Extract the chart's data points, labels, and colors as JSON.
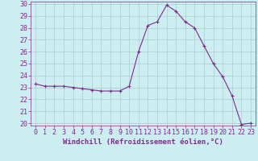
{
  "x": [
    0,
    1,
    2,
    3,
    4,
    5,
    6,
    7,
    8,
    9,
    10,
    11,
    12,
    13,
    14,
    15,
    16,
    17,
    18,
    19,
    20,
    21,
    22,
    23
  ],
  "y": [
    23.3,
    23.1,
    23.1,
    23.1,
    23.0,
    22.9,
    22.8,
    22.7,
    22.7,
    22.7,
    23.1,
    26.0,
    28.2,
    28.5,
    29.9,
    29.4,
    28.5,
    28.0,
    26.5,
    25.0,
    23.9,
    22.3,
    19.9,
    20.0
  ],
  "line_color": "#7b2d8b",
  "marker": "+",
  "marker_size": 3,
  "marker_lw": 0.8,
  "line_width": 0.8,
  "bg_color": "#cceef0",
  "grid_color": "#aacccc",
  "xlabel": "Windchill (Refroidissement éolien,°C)",
  "xlabel_fontsize": 6.5,
  "tick_fontsize": 6,
  "ylim": [
    20,
    30
  ],
  "xlim": [
    -0.5,
    23.5
  ],
  "yticks": [
    20,
    21,
    22,
    23,
    24,
    25,
    26,
    27,
    28,
    29,
    30
  ],
  "xticks": [
    0,
    1,
    2,
    3,
    4,
    5,
    6,
    7,
    8,
    9,
    10,
    11,
    12,
    13,
    14,
    15,
    16,
    17,
    18,
    19,
    20,
    21,
    22,
    23
  ]
}
